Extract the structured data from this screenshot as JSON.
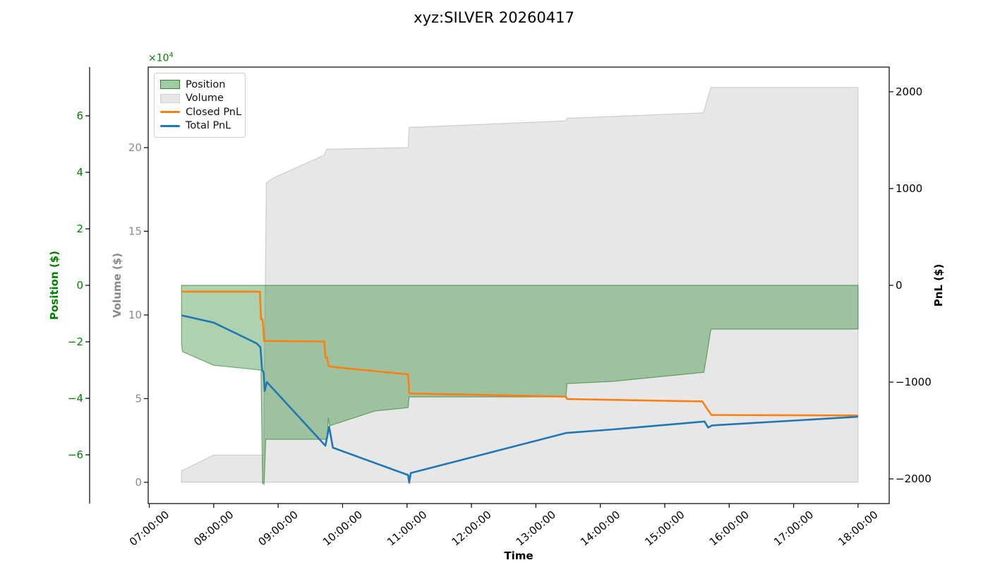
{
  "title": "xyz:SILVER 20260417",
  "legend": {
    "items": [
      {
        "label": "Position",
        "type": "patch",
        "fill": "rgba(20,125,25,0.4)",
        "edge": "rgba(25,110,30,0.8)"
      },
      {
        "label": "Volume",
        "type": "patch",
        "fill": "#e7e7e7",
        "edge": "#d0d0d0"
      },
      {
        "label": "Closed PnL",
        "type": "line",
        "color": "#ff7f0e"
      },
      {
        "label": "Total PnL",
        "type": "line",
        "color": "#1f77b4"
      }
    ]
  },
  "axes": {
    "x": {
      "label": "Time",
      "tick_labels": [
        "07:00:00",
        "08:00:00",
        "09:00:00",
        "10:00:00",
        "11:00:00",
        "12:00:00",
        "13:00:00",
        "14:00:00",
        "15:00:00",
        "16:00:00",
        "17:00:00",
        "18:00:00"
      ],
      "tick_minutes": [
        420,
        480,
        540,
        600,
        660,
        720,
        780,
        840,
        900,
        960,
        1020,
        1080
      ],
      "lim_minutes": [
        419,
        1109
      ]
    },
    "position": {
      "label": "Position ($)",
      "color": "#008000",
      "offset_text": "×10",
      "offset_exp": "4",
      "tick_values": [
        60000,
        40000,
        20000,
        0,
        -20000,
        -40000,
        -60000
      ],
      "tick_labels": [
        "6",
        "4",
        "2",
        "0",
        "−2",
        "−4",
        "−6"
      ],
      "lim": [
        -77250,
        77250
      ]
    },
    "volume": {
      "label": "Volume ($)",
      "color": "#8a8a8a",
      "tick_values": [
        200000,
        150000,
        100000,
        50000,
        0
      ],
      "tick_labels": [
        "20",
        "15",
        "10",
        "5",
        "0"
      ],
      "lim": [
        -12700,
        248100
      ]
    },
    "pnl": {
      "label": "PnL ($)",
      "color": "#000000",
      "tick_values": [
        2000,
        1000,
        0,
        -1000,
        -2000
      ],
      "tick_labels": [
        "2000",
        "1000",
        "0",
        "−1000",
        "−2000"
      ],
      "lim": [
        -2255,
        2255
      ]
    }
  },
  "chart_data": {
    "type": "area",
    "series": [
      {
        "name": "Volume",
        "kind": "area",
        "axis": "volume",
        "fill": "rgba(168,168,168,0.28)",
        "edge": "rgba(150,150,150,0.4)",
        "points": [
          [
            450,
            6900
          ],
          [
            480,
            16300
          ],
          [
            526.5,
            16300
          ],
          [
            529,
            179000
          ],
          [
            536,
            182000
          ],
          [
            583,
            195500
          ],
          [
            585,
            199000
          ],
          [
            661,
            200000
          ],
          [
            662,
            212000
          ],
          [
            808,
            216000
          ],
          [
            809,
            217500
          ],
          [
            936,
            220800
          ],
          [
            943,
            236000
          ],
          [
            1080,
            236000
          ]
        ]
      },
      {
        "name": "Position",
        "kind": "area",
        "axis": "position",
        "fill": "rgba(20,125,25,0.345)",
        "edge": "rgba(25,115,30,0.55)",
        "points": [
          [
            450,
            -20800
          ],
          [
            451,
            -23500
          ],
          [
            480,
            -28300
          ],
          [
            524,
            -30000
          ],
          [
            525.5,
            -70300
          ],
          [
            527,
            -70300
          ],
          [
            528.5,
            -54500
          ],
          [
            585.5,
            -54500
          ],
          [
            586.7,
            -46800
          ],
          [
            588,
            -49700
          ],
          [
            630,
            -44500
          ],
          [
            661,
            -43300
          ],
          [
            662,
            -39500
          ],
          [
            808,
            -39500
          ],
          [
            809,
            -34800
          ],
          [
            852,
            -34000
          ],
          [
            936.5,
            -30800
          ],
          [
            943,
            -15500
          ],
          [
            1080,
            -15500
          ]
        ]
      },
      {
        "name": "Closed PnL",
        "kind": "line",
        "axis": "pnl",
        "color": "#ff7f0e",
        "points": [
          [
            450,
            -65
          ],
          [
            523,
            -65
          ],
          [
            524,
            -350
          ],
          [
            525.5,
            -350
          ],
          [
            527,
            -575
          ],
          [
            583,
            -580
          ],
          [
            584,
            -745
          ],
          [
            585.5,
            -745
          ],
          [
            587,
            -835
          ],
          [
            592,
            -845
          ],
          [
            661,
            -920
          ],
          [
            662,
            -1117
          ],
          [
            808,
            -1150
          ],
          [
            809,
            -1175
          ],
          [
            935,
            -1200
          ],
          [
            940,
            -1285
          ],
          [
            943.5,
            -1340
          ],
          [
            1080,
            -1345
          ]
        ]
      },
      {
        "name": "Total PnL",
        "kind": "line",
        "axis": "pnl",
        "color": "#1f77b4",
        "points": [
          [
            450,
            -310
          ],
          [
            480,
            -385
          ],
          [
            520,
            -600
          ],
          [
            523.5,
            -640
          ],
          [
            525,
            -870
          ],
          [
            526.5,
            -905
          ],
          [
            527.5,
            -1090
          ],
          [
            529.5,
            -1000
          ],
          [
            584,
            -1657
          ],
          [
            587.5,
            -1462
          ],
          [
            591,
            -1678
          ],
          [
            661,
            -1960
          ],
          [
            662,
            -2040
          ],
          [
            663.5,
            -1940
          ],
          [
            808,
            -1526
          ],
          [
            852,
            -1489
          ],
          [
            937,
            -1407
          ],
          [
            940.5,
            -1470
          ],
          [
            944,
            -1448
          ],
          [
            1080,
            -1358
          ]
        ]
      }
    ]
  }
}
